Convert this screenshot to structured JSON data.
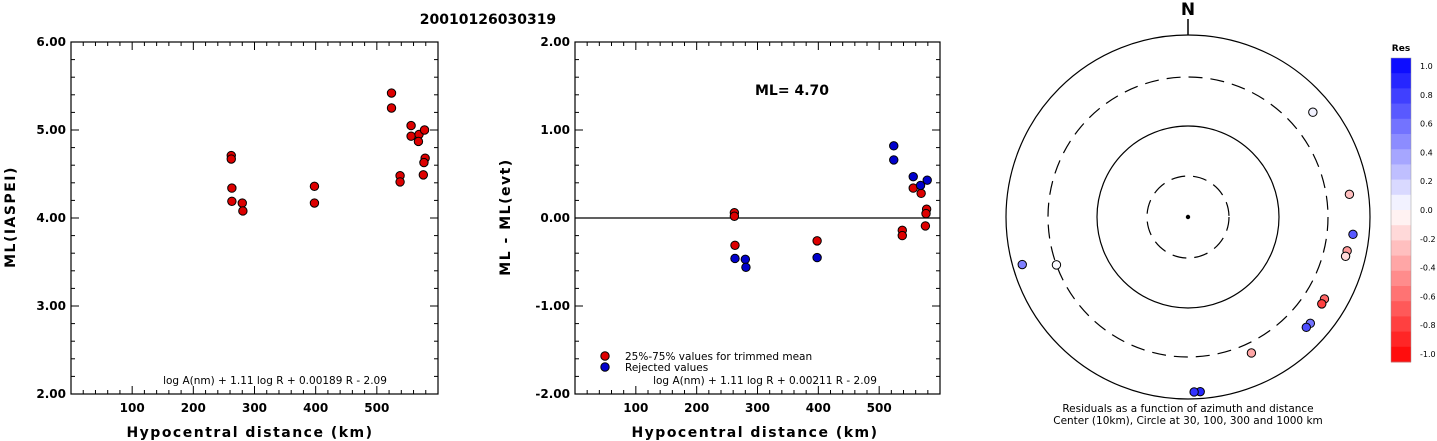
{
  "figure_title": "20010126030319",
  "colors": {
    "trimmed": "#dd0000",
    "rejected": "#0000cc",
    "residual_positive_max": "#0000ff",
    "residual_negative_max": "#ff0000"
  },
  "chart_data": [
    {
      "type": "scatter",
      "title": "",
      "xlabel": "Hypocentral distance (km)",
      "ylabel": "ML(IASPEI)",
      "xlim": [
        0,
        600
      ],
      "ylim": [
        2.0,
        6.0
      ],
      "x_ticks": [
        100,
        200,
        300,
        400,
        500
      ],
      "y_ticks": [
        2.0,
        3.0,
        4.0,
        5.0,
        6.0
      ],
      "y_tick_labels": [
        "2.00",
        "3.00",
        "4.00",
        "5.00",
        "6.00"
      ],
      "formula": "log A(nm) + 1.11 log R + 0.00189 R - 2.09",
      "series": [
        {
          "color": "#dd0000",
          "points": [
            [
              262,
              4.71
            ],
            [
              262,
              4.67
            ],
            [
              263,
              4.34
            ],
            [
              263,
              4.19
            ],
            [
              280,
              4.17
            ],
            [
              281,
              4.08
            ],
            [
              398,
              4.36
            ],
            [
              398,
              4.17
            ],
            [
              524,
              5.42
            ],
            [
              524,
              5.25
            ],
            [
              538,
              4.48
            ],
            [
              538,
              4.41
            ],
            [
              556,
              5.05
            ],
            [
              556,
              4.93
            ],
            [
              569,
              4.95
            ],
            [
              568,
              4.87
            ],
            [
              578,
              5.0
            ],
            [
              579,
              4.68
            ],
            [
              577,
              4.63
            ],
            [
              576,
              4.49
            ]
          ]
        }
      ]
    },
    {
      "type": "scatter",
      "title": "",
      "xlabel": "Hypocentral distance (km)",
      "ylabel": "ML - ML(evt)",
      "xlim": [
        0,
        600
      ],
      "ylim": [
        -2.0,
        2.0
      ],
      "x_ticks": [
        100,
        200,
        300,
        400,
        500
      ],
      "y_ticks": [
        -2.0,
        -1.0,
        0.0,
        1.0,
        2.0
      ],
      "y_tick_labels": [
        "-2.00",
        "-1.00",
        "0.00",
        "1.00",
        "2.00"
      ],
      "reference_line": 0.0,
      "ml_label": "ML= 4.70",
      "formula": "log A(nm) + 1.11 log R + 0.00211 R - 2.09",
      "legend": [
        {
          "label": "25%-75% values for trimmed mean",
          "color": "#dd0000"
        },
        {
          "label": "Rejected values",
          "color": "#0000cc"
        }
      ],
      "series": [
        {
          "name": "25%-75% values for trimmed mean",
          "color": "#dd0000",
          "points": [
            [
              262,
              0.06
            ],
            [
              262,
              0.02
            ],
            [
              263,
              -0.31
            ],
            [
              398,
              -0.26
            ],
            [
              538,
              -0.14
            ],
            [
              538,
              -0.2
            ],
            [
              556,
              0.34
            ],
            [
              569,
              0.28
            ],
            [
              578,
              0.1
            ],
            [
              577,
              0.05
            ],
            [
              576,
              -0.09
            ]
          ]
        },
        {
          "name": "Rejected values",
          "color": "#0000cc",
          "points": [
            [
              263,
              -0.46
            ],
            [
              280,
              -0.47
            ],
            [
              281,
              -0.56
            ],
            [
              398,
              -0.45
            ],
            [
              524,
              0.82
            ],
            [
              524,
              0.66
            ],
            [
              556,
              0.47
            ],
            [
              568,
              0.37
            ],
            [
              579,
              0.43
            ]
          ]
        }
      ]
    },
    {
      "type": "polar-scatter",
      "north_label": "N",
      "distance_rings_km": [
        30,
        100,
        300,
        1000
      ],
      "dashed_rings_km": [
        30,
        300
      ],
      "caption_line1": "Residuals as a function of azimuth and distance",
      "caption_line2": "Center (10km), Circle at 30, 100, 300 and 1000 km",
      "colorbar": {
        "title": "Res",
        "ticks": [
          "1.0",
          "0.8",
          "0.6",
          "0.4",
          "0.2",
          "0.0",
          "-0.2",
          "-0.4",
          "-0.6",
          "-0.8",
          "-1.0"
        ],
        "range": [
          -1.0,
          1.0
        ]
      },
      "points": [
        {
          "azimuth_deg": 50,
          "distance_km": 580,
          "residual": 0.05
        },
        {
          "azimuth_deg": 82,
          "distance_km": 580,
          "residual": -0.25
        },
        {
          "azimuth_deg": 96,
          "distance_km": 630,
          "residual": 0.65
        },
        {
          "azimuth_deg": 102,
          "distance_km": 575,
          "residual": -0.4
        },
        {
          "azimuth_deg": 104,
          "distance_km": 570,
          "residual": -0.15
        },
        {
          "azimuth_deg": 121,
          "distance_km": 520,
          "residual": -0.6
        },
        {
          "azimuth_deg": 123,
          "distance_km": 525,
          "residual": -0.75
        },
        {
          "azimuth_deg": 131,
          "distance_km": 565,
          "residual": 0.55
        },
        {
          "azimuth_deg": 133,
          "distance_km": 560,
          "residual": 0.7
        },
        {
          "azimuth_deg": 155,
          "distance_km": 400,
          "residual": -0.35
        },
        {
          "azimuth_deg": 176,
          "distance_km": 820,
          "residual": 0.85
        },
        {
          "azimuth_deg": 178,
          "distance_km": 820,
          "residual": 0.8
        },
        {
          "azimuth_deg": 250,
          "distance_km": 300,
          "residual": 0.02
        },
        {
          "azimuth_deg": 254,
          "distance_km": 760,
          "residual": 0.5
        }
      ]
    }
  ]
}
